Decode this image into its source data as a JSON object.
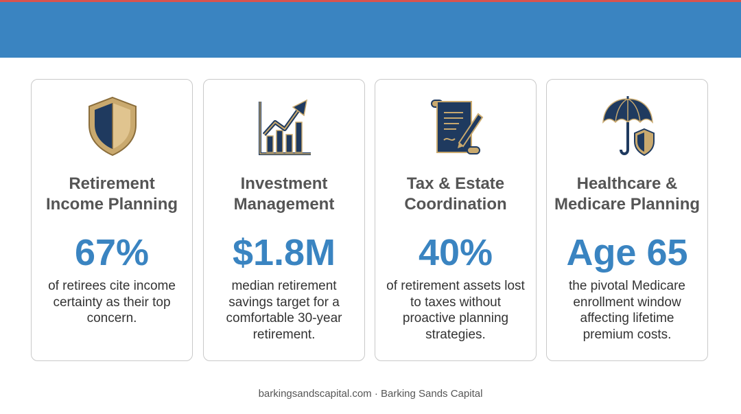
{
  "colors": {
    "accent_line": "#d9534f",
    "header_band": "#3a84c1",
    "stat_blue": "#3a84c1",
    "icon_navy": "#1f3a5f",
    "icon_gold": "#c9a96e"
  },
  "cards": [
    {
      "icon": "shield-icon",
      "title": "Retirement\nIncome Planning",
      "stat": "67%",
      "description": "of retirees cite income certainty as their top concern."
    },
    {
      "icon": "growth-chart-icon",
      "title": "Investment\nManagement",
      "stat": "$1.8M",
      "description": "median retirement savings target for a comfortable 30-year retirement."
    },
    {
      "icon": "document-pen-icon",
      "title": "Tax & Estate\nCoordination",
      "stat": "40%",
      "description": "of retirement assets lost to taxes without proactive planning strategies."
    },
    {
      "icon": "umbrella-shield-icon",
      "title": "Healthcare &\nMedicare Planning",
      "stat": "Age 65",
      "description": "the pivotal Medicare enrollment window affecting lifetime premium costs."
    }
  ],
  "footer": "barkingsandscapital.com · Barking Sands Capital"
}
